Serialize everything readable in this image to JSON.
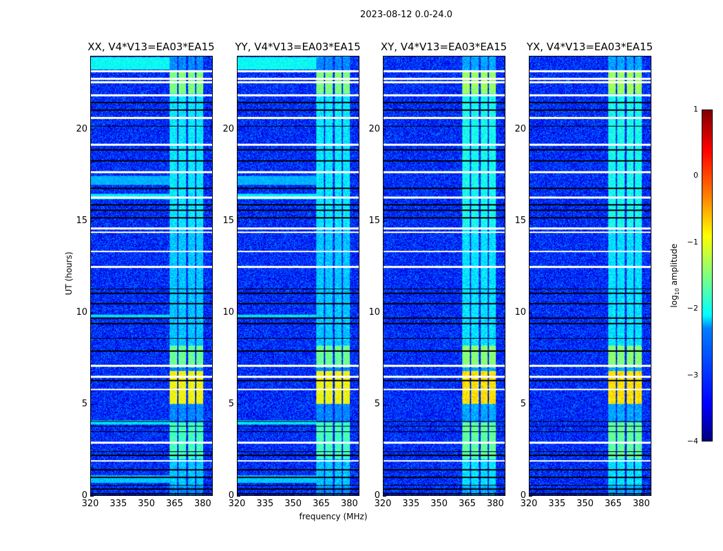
{
  "chart_data": {
    "type": "heatmap",
    "title": "2023-08-12 0.0-24.0",
    "xlabel": "frequency (MHz)",
    "ylabel": "UT (hours)",
    "xlim": [
      320,
      385
    ],
    "ylim": [
      0,
      24
    ],
    "xticks": [
      "320",
      "335",
      "350",
      "365",
      "380"
    ],
    "xtick_values": [
      320,
      335,
      350,
      365,
      380
    ],
    "yticks": [
      "0",
      "5",
      "10",
      "15",
      "20"
    ],
    "ytick_values": [
      0,
      5,
      10,
      15,
      20
    ],
    "panels": [
      {
        "title": "XX, V4*V13=EA03*EA15",
        "lowfreq_bright": true
      },
      {
        "title": "YY, V4*V13=EA03*EA15",
        "lowfreq_bright": true
      },
      {
        "title": "XY, V4*V13=EA03*EA15",
        "lowfreq_bright": false
      },
      {
        "title": "YX, V4*V13=EA03*EA15",
        "lowfreq_bright": false
      }
    ],
    "colorbar": {
      "label_main": "log",
      "label_sub": "10",
      "label_rest": " amplitude",
      "range": [
        -4,
        1
      ],
      "ticks": [
        "1",
        "0",
        "−1",
        "−2",
        "−3",
        "−4"
      ],
      "tick_values": [
        1,
        0,
        -1,
        -2,
        -3,
        -4
      ],
      "colormap": "jet"
    },
    "background_level": -3.2,
    "rfi_band_mhz": [
      [
        362,
        366
      ],
      [
        367,
        371
      ],
      [
        372,
        375.5
      ],
      [
        376.5,
        380
      ]
    ],
    "rfi_time_levels": [
      {
        "hours": [
          5.0,
          6.8
        ],
        "level": -0.9
      },
      {
        "hours": [
          7.0,
          8.2
        ],
        "level": -1.6
      },
      {
        "hours": [
          9.5,
          10.0
        ],
        "level": -1.3
      },
      {
        "hours": [
          2.0,
          4.0
        ],
        "level": -1.8
      },
      {
        "hours": [
          8.2,
          14.5
        ],
        "level": -2.4
      },
      {
        "hours": [
          14.5,
          22.0
        ],
        "level": -2.2
      },
      {
        "hours": [
          22.0,
          23.2
        ],
        "level": -1.5
      },
      {
        "hours": [
          0.5,
          2.0
        ],
        "level": -2.4
      }
    ],
    "lowfreq_bright_hours": [
      [
        0.7,
        1.1,
        -2.4
      ],
      [
        3.9,
        4.1,
        -2.3
      ],
      [
        9.7,
        9.9,
        -2.3
      ],
      [
        16.2,
        16.5,
        -2.2
      ],
      [
        17.0,
        17.5,
        -2.5
      ],
      [
        23.3,
        24.0,
        -2.1
      ]
    ],
    "flagged_white_hours": [
      1.9,
      2.9,
      5.8,
      6.5,
      7.1,
      12.5,
      13.35,
      14.4,
      14.6,
      16.3,
      17.7,
      19.2,
      20.65,
      21.9,
      22.6,
      22.8,
      23.2
    ],
    "black_line_hours": [
      0.1,
      0.35,
      0.56,
      1.0,
      1.4,
      2.2,
      2.4,
      3.5,
      3.8,
      4.05,
      6.3,
      7.9,
      8.6,
      9.4,
      9.7,
      10.5,
      11.05,
      11.3,
      15.2,
      15.6,
      15.9,
      16.8,
      18.3,
      18.9,
      20.2,
      21.1,
      21.5
    ]
  }
}
